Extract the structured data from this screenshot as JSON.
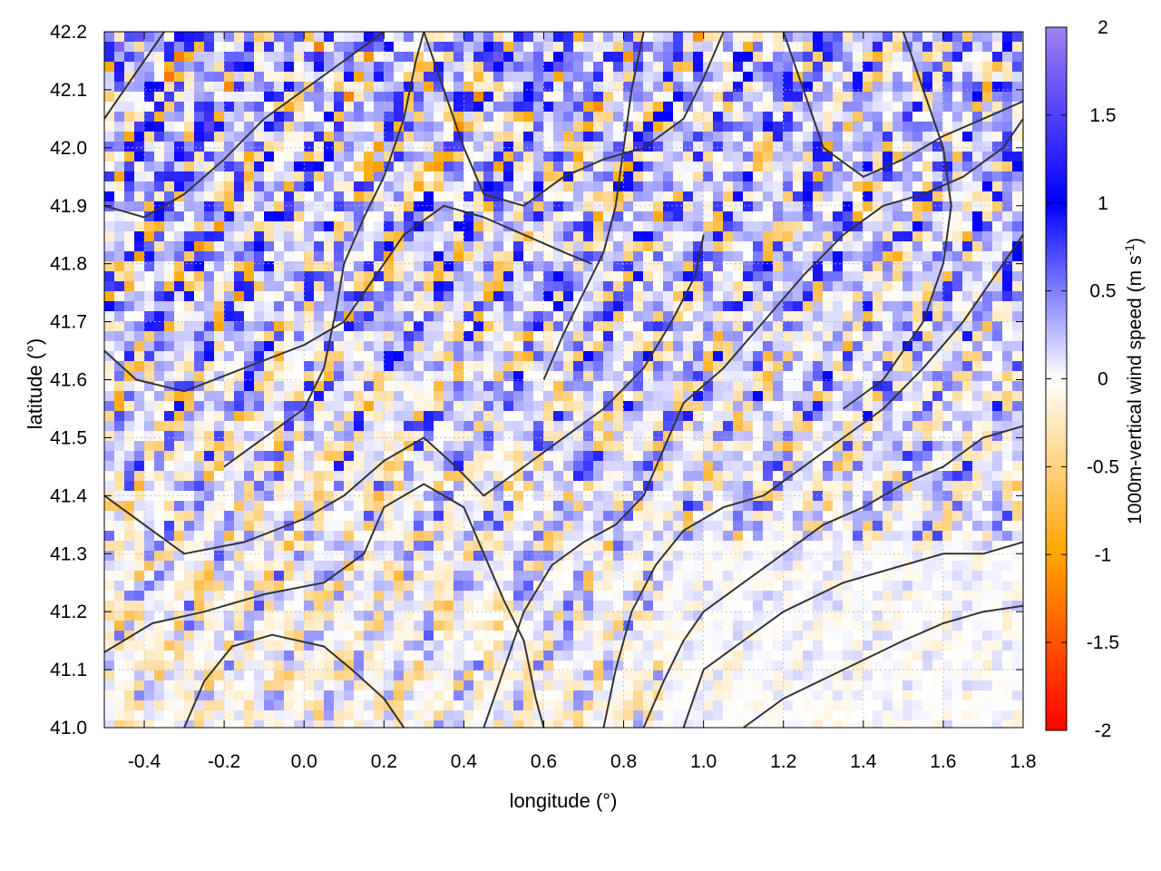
{
  "chart_data": {
    "type": "heatmap",
    "title": "",
    "xlabel": "longitude (°)",
    "ylabel": "latitude (°)",
    "xlim": [
      -0.5,
      1.8
    ],
    "ylim": [
      41.0,
      42.2
    ],
    "x_ticks": [
      {
        "value": -0.4,
        "label": "-0.4"
      },
      {
        "value": -0.2,
        "label": "-0.2"
      },
      {
        "value": 0.0,
        "label": "0.0"
      },
      {
        "value": 0.2,
        "label": "0.2"
      },
      {
        "value": 0.4,
        "label": "0.4"
      },
      {
        "value": 0.6,
        "label": "0.6"
      },
      {
        "value": 0.8,
        "label": "0.8"
      },
      {
        "value": 1.0,
        "label": "1.0"
      },
      {
        "value": 1.2,
        "label": "1.2"
      },
      {
        "value": 1.4,
        "label": "1.4"
      },
      {
        "value": 1.6,
        "label": "1.6"
      },
      {
        "value": 1.8,
        "label": "1.8"
      }
    ],
    "y_ticks": [
      {
        "value": 41.0,
        "label": "41.0"
      },
      {
        "value": 41.1,
        "label": "41.1"
      },
      {
        "value": 41.2,
        "label": "41.2"
      },
      {
        "value": 41.3,
        "label": "41.3"
      },
      {
        "value": 41.4,
        "label": "41.4"
      },
      {
        "value": 41.5,
        "label": "41.5"
      },
      {
        "value": 41.6,
        "label": "41.6"
      },
      {
        "value": 41.7,
        "label": "41.7"
      },
      {
        "value": 41.8,
        "label": "41.8"
      },
      {
        "value": 41.9,
        "label": "41.9"
      },
      {
        "value": 42.0,
        "label": "42.0"
      },
      {
        "value": 42.1,
        "label": "42.1"
      },
      {
        "value": 42.2,
        "label": "42.2"
      }
    ],
    "grid": true,
    "colorbar": {
      "label_main": "1000m-vertical wind speed (m s",
      "label_sup": "-1",
      "label_end": ")",
      "range": [
        -2,
        2
      ],
      "ticks": [
        {
          "value": 2,
          "label": "2"
        },
        {
          "value": 1.5,
          "label": "1.5"
        },
        {
          "value": 1,
          "label": "1"
        },
        {
          "value": 0.5,
          "label": "0.5"
        },
        {
          "value": 0,
          "label": "0"
        },
        {
          "value": -0.5,
          "label": "-0.5"
        },
        {
          "value": -1,
          "label": "-1"
        },
        {
          "value": -1.5,
          "label": "-1.5"
        },
        {
          "value": -2,
          "label": "-2"
        }
      ],
      "stops": [
        {
          "value": -2,
          "color": "#ff0000"
        },
        {
          "value": -1,
          "color": "#ffa500"
        },
        {
          "value": 0,
          "color": "#ffffff"
        },
        {
          "value": 1,
          "color": "#0000ff"
        },
        {
          "value": 2,
          "color": "#a080f0"
        }
      ]
    },
    "contour_color": "#333333",
    "contours": [
      [
        [
          -0.5,
          41.13
        ],
        [
          -0.38,
          41.18
        ],
        [
          -0.25,
          41.2
        ],
        [
          -0.1,
          41.23
        ],
        [
          0.05,
          41.25
        ],
        [
          0.15,
          41.3
        ],
        [
          0.2,
          41.38
        ],
        [
          0.3,
          41.42
        ],
        [
          0.4,
          41.38
        ],
        [
          0.45,
          41.3
        ],
        [
          0.5,
          41.22
        ],
        [
          0.55,
          41.15
        ],
        [
          0.58,
          41.05
        ],
        [
          0.6,
          41.0
        ]
      ],
      [
        [
          -0.5,
          41.4
        ],
        [
          -0.4,
          41.35
        ],
        [
          -0.3,
          41.3
        ],
        [
          -0.15,
          41.32
        ],
        [
          0.0,
          41.36
        ],
        [
          0.1,
          41.4
        ],
        [
          0.2,
          41.46
        ],
        [
          0.3,
          41.5
        ],
        [
          0.38,
          41.45
        ],
        [
          0.45,
          41.4
        ],
        [
          0.55,
          41.45
        ],
        [
          0.65,
          41.5
        ],
        [
          0.75,
          41.55
        ],
        [
          0.85,
          41.62
        ],
        [
          0.92,
          41.7
        ],
        [
          0.98,
          41.78
        ],
        [
          1.0,
          41.85
        ]
      ],
      [
        [
          -0.5,
          41.65
        ],
        [
          -0.42,
          41.6
        ],
        [
          -0.3,
          41.58
        ],
        [
          -0.15,
          41.62
        ],
        [
          0.0,
          41.66
        ],
        [
          0.1,
          41.7
        ],
        [
          0.18,
          41.78
        ],
        [
          0.25,
          41.85
        ],
        [
          0.35,
          41.9
        ],
        [
          0.45,
          41.88
        ],
        [
          0.55,
          41.85
        ],
        [
          0.65,
          41.82
        ],
        [
          0.72,
          41.8
        ]
      ],
      [
        [
          -0.5,
          41.9
        ],
        [
          -0.4,
          41.88
        ],
        [
          -0.3,
          41.92
        ],
        [
          -0.2,
          41.98
        ],
        [
          -0.1,
          42.05
        ],
        [
          0.0,
          42.1
        ],
        [
          0.1,
          42.15
        ],
        [
          0.2,
          42.2
        ]
      ],
      [
        [
          0.3,
          42.2
        ],
        [
          0.35,
          42.1
        ],
        [
          0.4,
          42.0
        ],
        [
          0.45,
          41.92
        ],
        [
          0.55,
          41.9
        ],
        [
          0.65,
          41.95
        ],
        [
          0.75,
          41.98
        ],
        [
          0.85,
          42.0
        ],
        [
          0.95,
          42.05
        ],
        [
          1.0,
          42.12
        ],
        [
          1.05,
          42.2
        ]
      ],
      [
        [
          0.85,
          41.0
        ],
        [
          0.9,
          41.08
        ],
        [
          0.95,
          41.15
        ],
        [
          1.0,
          41.2
        ],
        [
          1.1,
          41.25
        ],
        [
          1.2,
          41.3
        ],
        [
          1.3,
          41.35
        ],
        [
          1.4,
          41.38
        ],
        [
          1.5,
          41.42
        ],
        [
          1.6,
          41.45
        ],
        [
          1.7,
          41.5
        ],
        [
          1.8,
          41.52
        ]
      ],
      [
        [
          0.95,
          41.0
        ],
        [
          1.0,
          41.1
        ],
        [
          1.1,
          41.15
        ],
        [
          1.2,
          41.2
        ],
        [
          1.35,
          41.25
        ],
        [
          1.5,
          41.28
        ],
        [
          1.6,
          41.3
        ],
        [
          1.7,
          41.3
        ],
        [
          1.8,
          41.32
        ]
      ],
      [
        [
          1.1,
          41.0
        ],
        [
          1.2,
          41.05
        ],
        [
          1.35,
          41.1
        ],
        [
          1.5,
          41.15
        ],
        [
          1.6,
          41.18
        ],
        [
          1.7,
          41.2
        ],
        [
          1.8,
          41.21
        ]
      ],
      [
        [
          0.75,
          41.0
        ],
        [
          0.78,
          41.1
        ],
        [
          0.82,
          41.2
        ],
        [
          0.88,
          41.28
        ],
        [
          0.95,
          41.34
        ],
        [
          1.05,
          41.38
        ],
        [
          1.15,
          41.4
        ],
        [
          1.25,
          41.45
        ],
        [
          1.35,
          41.5
        ],
        [
          1.45,
          41.55
        ],
        [
          1.55,
          41.62
        ],
        [
          1.65,
          41.7
        ],
        [
          1.75,
          41.8
        ],
        [
          1.8,
          41.85
        ]
      ],
      [
        [
          0.45,
          41.0
        ],
        [
          0.5,
          41.1
        ],
        [
          0.55,
          41.2
        ],
        [
          0.62,
          41.28
        ],
        [
          0.7,
          41.32
        ],
        [
          0.78,
          41.35
        ],
        [
          0.85,
          41.4
        ],
        [
          0.9,
          41.48
        ],
        [
          0.95,
          41.56
        ],
        [
          1.05,
          41.62
        ],
        [
          1.15,
          41.7
        ],
        [
          1.25,
          41.78
        ],
        [
          1.35,
          41.85
        ],
        [
          1.45,
          41.9
        ],
        [
          1.55,
          41.92
        ],
        [
          1.65,
          41.95
        ],
        [
          1.75,
          42.0
        ],
        [
          1.8,
          42.05
        ]
      ],
      [
        [
          -0.3,
          41.0
        ],
        [
          -0.25,
          41.08
        ],
        [
          -0.18,
          41.14
        ],
        [
          -0.08,
          41.16
        ],
        [
          0.05,
          41.14
        ],
        [
          0.12,
          41.1
        ],
        [
          0.2,
          41.05
        ],
        [
          0.25,
          41.0
        ]
      ],
      [
        [
          -0.5,
          42.05
        ],
        [
          -0.45,
          42.1
        ],
        [
          -0.4,
          42.15
        ],
        [
          -0.35,
          42.2
        ]
      ],
      [
        [
          1.2,
          42.2
        ],
        [
          1.25,
          42.1
        ],
        [
          1.3,
          42.0
        ],
        [
          1.4,
          41.95
        ],
        [
          1.5,
          41.98
        ],
        [
          1.6,
          42.02
        ],
        [
          1.7,
          42.05
        ],
        [
          1.8,
          42.08
        ]
      ],
      [
        [
          1.35,
          41.55
        ],
        [
          1.45,
          41.6
        ],
        [
          1.55,
          41.7
        ],
        [
          1.6,
          41.8
        ],
        [
          1.62,
          41.9
        ],
        [
          1.6,
          42.0
        ],
        [
          1.55,
          42.1
        ],
        [
          1.5,
          42.2
        ]
      ],
      [
        [
          0.6,
          41.6
        ],
        [
          0.65,
          41.68
        ],
        [
          0.7,
          41.75
        ],
        [
          0.75,
          41.82
        ],
        [
          0.78,
          41.9
        ],
        [
          0.8,
          42.0
        ],
        [
          0.82,
          42.1
        ],
        [
          0.85,
          42.2
        ]
      ],
      [
        [
          -0.2,
          41.45
        ],
        [
          -0.1,
          41.5
        ],
        [
          0.0,
          41.55
        ],
        [
          0.05,
          41.62
        ],
        [
          0.08,
          41.72
        ],
        [
          0.1,
          41.8
        ],
        [
          0.15,
          41.88
        ],
        [
          0.2,
          41.95
        ],
        [
          0.25,
          42.05
        ],
        [
          0.28,
          42.15
        ],
        [
          0.3,
          42.2
        ]
      ]
    ]
  }
}
